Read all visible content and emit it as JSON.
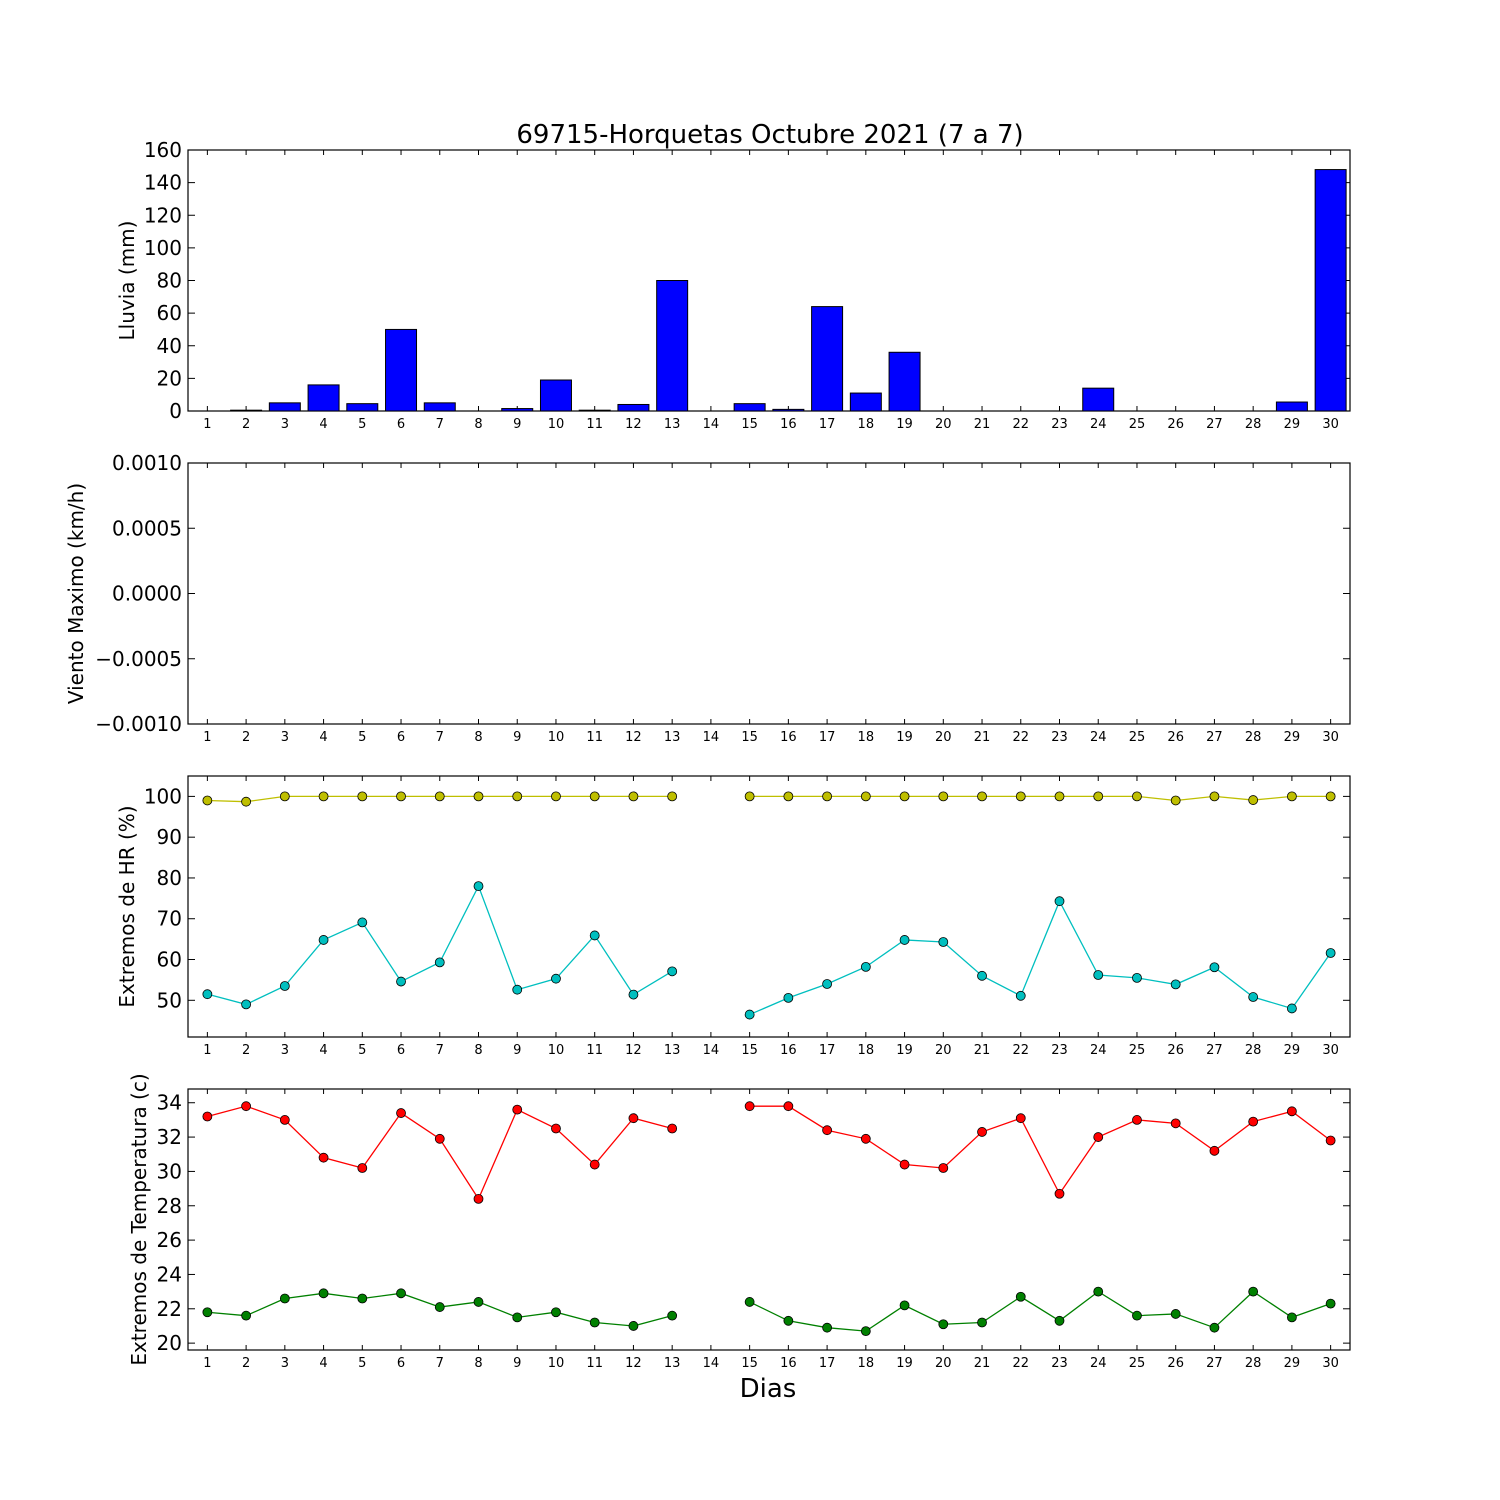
{
  "title": "69715-Horquetas Octubre 2021  (7 a 7)",
  "xlabel": "Dias",
  "colors": {
    "rain": "#0000ff",
    "hr_max": "#bfbf00",
    "hr_min": "#00bfbf",
    "t_max": "#ff0000",
    "t_min": "#008000"
  },
  "chart_data": [
    {
      "type": "bar",
      "ylabel": "Lluvia (mm)",
      "ylim": [
        0,
        160
      ],
      "yticks": [
        0,
        20,
        40,
        60,
        80,
        100,
        120,
        140,
        160
      ],
      "ytick_labels": [
        "0",
        "20",
        "40",
        "60",
        "80",
        "100",
        "120",
        "140",
        "160"
      ],
      "categories": [
        1,
        2,
        3,
        4,
        5,
        6,
        7,
        8,
        9,
        10,
        11,
        12,
        13,
        14,
        15,
        16,
        17,
        18,
        19,
        20,
        21,
        22,
        23,
        24,
        25,
        26,
        27,
        28,
        29,
        30
      ],
      "values": [
        0,
        0.5,
        5,
        16,
        4.5,
        50,
        5,
        0,
        1.5,
        19,
        0.5,
        4,
        80,
        0,
        4.5,
        1,
        64,
        11,
        36,
        0,
        0,
        0,
        0,
        14,
        0,
        0,
        0,
        0,
        5.5,
        148
      ]
    },
    {
      "type": "line",
      "ylabel": "Viento Maximo (km/h)",
      "ylim": [
        -0.001,
        0.001
      ],
      "yticks": [
        -0.001,
        -0.0005,
        0,
        0.0005,
        0.001
      ],
      "ytick_labels": [
        "−0.0010",
        "−0.0005",
        "0.0000",
        "0.0005",
        "0.0010"
      ],
      "categories": [
        1,
        2,
        3,
        4,
        5,
        6,
        7,
        8,
        9,
        10,
        11,
        12,
        13,
        14,
        15,
        16,
        17,
        18,
        19,
        20,
        21,
        22,
        23,
        24,
        25,
        26,
        27,
        28,
        29,
        30
      ],
      "series": []
    },
    {
      "type": "line",
      "ylabel": "Extremos de HR (%)",
      "ylim": [
        41,
        105
      ],
      "yticks": [
        50,
        60,
        70,
        80,
        90,
        100
      ],
      "ytick_labels": [
        "50",
        "60",
        "70",
        "80",
        "90",
        "100"
      ],
      "categories": [
        1,
        2,
        3,
        4,
        5,
        6,
        7,
        8,
        9,
        10,
        11,
        12,
        13,
        14,
        15,
        16,
        17,
        18,
        19,
        20,
        21,
        22,
        23,
        24,
        25,
        26,
        27,
        28,
        29,
        30
      ],
      "series": [
        {
          "key": "hr_max",
          "values": [
            99,
            98.7,
            100,
            100,
            100,
            100,
            100,
            100,
            100,
            100,
            100,
            100,
            100,
            null,
            100,
            100,
            100,
            100,
            100,
            100,
            100,
            100,
            100,
            100,
            100,
            99,
            100,
            99.1,
            100,
            100
          ]
        },
        {
          "key": "hr_min",
          "values": [
            51.5,
            49,
            53.5,
            64.8,
            69.1,
            54.6,
            59.3,
            78,
            52.6,
            55.3,
            65.9,
            51.4,
            57.1,
            null,
            46.5,
            50.6,
            54,
            58.2,
            64.8,
            64.3,
            56,
            51.1,
            74.3,
            56.2,
            55.5,
            53.9,
            58.1,
            50.8,
            48,
            61.6
          ]
        }
      ]
    },
    {
      "type": "line",
      "ylabel": "Extremos de Temperatura (c)",
      "ylim": [
        19.6,
        34.8
      ],
      "yticks": [
        20,
        22,
        24,
        26,
        28,
        30,
        32,
        34
      ],
      "ytick_labels": [
        "20",
        "22",
        "24",
        "26",
        "28",
        "30",
        "32",
        "34"
      ],
      "categories": [
        1,
        2,
        3,
        4,
        5,
        6,
        7,
        8,
        9,
        10,
        11,
        12,
        13,
        14,
        15,
        16,
        17,
        18,
        19,
        20,
        21,
        22,
        23,
        24,
        25,
        26,
        27,
        28,
        29,
        30
      ],
      "series": [
        {
          "key": "t_max",
          "values": [
            33.2,
            33.8,
            33,
            30.8,
            30.2,
            33.4,
            31.9,
            28.4,
            33.6,
            32.5,
            30.4,
            33.1,
            32.5,
            null,
            33.8,
            33.8,
            32.4,
            31.9,
            30.4,
            30.2,
            32.3,
            33.1,
            28.7,
            32,
            33,
            32.8,
            31.2,
            32.9,
            33.5,
            31.8
          ]
        },
        {
          "key": "t_min",
          "values": [
            21.8,
            21.6,
            22.6,
            22.9,
            22.6,
            22.9,
            22.1,
            22.4,
            21.5,
            21.8,
            21.2,
            21,
            21.6,
            null,
            22.4,
            21.3,
            20.9,
            20.7,
            22.2,
            21.1,
            21.2,
            22.7,
            21.3,
            23,
            21.6,
            21.7,
            20.9,
            23,
            21.5,
            22.3
          ]
        }
      ]
    }
  ]
}
